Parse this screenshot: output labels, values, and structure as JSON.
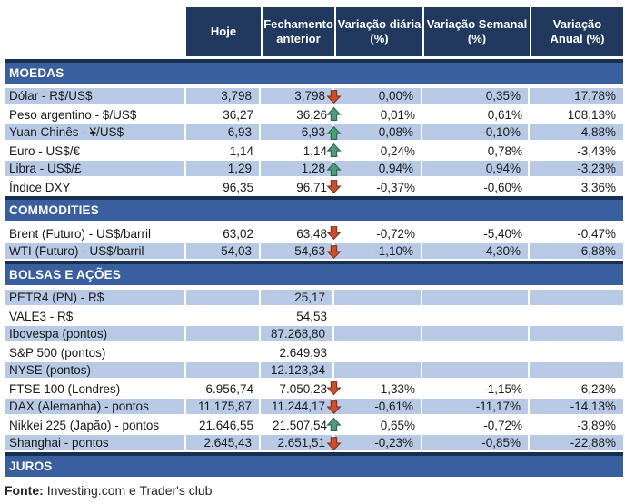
{
  "chart_data": {
    "type": "table",
    "columns": [
      "",
      "Hoje",
      "Fechamento\nanterior",
      "Variação diária\n(%)",
      "Variação Semanal\n(%)",
      "Variação\nAnual (%)"
    ],
    "sections": [
      {
        "title": "MOEDAS",
        "first_row_shaded": true,
        "rows": [
          {
            "label": "Dólar - R$/US$",
            "hoje": "3,798",
            "fechamento": "3,798",
            "arrow": "down",
            "daily": "0,00%",
            "weekly": "0,35%",
            "annual": "17,78%"
          },
          {
            "label": "Peso argentino - $/US$",
            "hoje": "36,27",
            "fechamento": "36,26",
            "arrow": "up",
            "daily": "0,01%",
            "weekly": "0,61%",
            "annual": "108,13%"
          },
          {
            "label": "Yuan Chinês - ¥/US$",
            "hoje": "6,93",
            "fechamento": "6,93",
            "arrow": "up",
            "daily": "0,08%",
            "weekly": "-0,10%",
            "annual": "4,88%"
          },
          {
            "label": "Euro - US$/€",
            "hoje": "1,14",
            "fechamento": "1,14",
            "arrow": "up",
            "daily": "0,24%",
            "weekly": "0,78%",
            "annual": "-3,43%"
          },
          {
            "label": "Libra - US$/£",
            "hoje": "1,29",
            "fechamento": "1,28",
            "arrow": "up",
            "daily": "0,94%",
            "weekly": "0,94%",
            "annual": "-3,23%"
          },
          {
            "label": "Índice DXY",
            "hoje": "96,35",
            "fechamento": "96,71",
            "arrow": "down",
            "daily": "-0,37%",
            "weekly": "-0,60%",
            "annual": "3,36%"
          }
        ]
      },
      {
        "title": "COMMODITIES",
        "first_row_shaded": false,
        "rows": [
          {
            "label": "Brent (Futuro) - US$/barril",
            "hoje": "63,02",
            "fechamento": "63,48",
            "arrow": "down",
            "daily": "-0,72%",
            "weekly": "-5,40%",
            "annual": "-0,47%"
          },
          {
            "label": "WTI (Futuro) - US$/barril",
            "hoje": "54,03",
            "fechamento": "54,63",
            "arrow": "down",
            "daily": "-1,10%",
            "weekly": "-4,30%",
            "annual": "-6,88%"
          }
        ]
      },
      {
        "title": "BOLSAS E AÇÕES",
        "first_row_shaded": true,
        "rows": [
          {
            "label": "PETR4 (PN) - R$",
            "hoje": "",
            "fechamento": "25,17",
            "arrow": "",
            "daily": "",
            "weekly": "",
            "annual": ""
          },
          {
            "label": "VALE3 - R$",
            "hoje": "",
            "fechamento": "54,53",
            "arrow": "",
            "daily": "",
            "weekly": "",
            "annual": ""
          },
          {
            "label": "Ibovespa (pontos)",
            "hoje": "",
            "fechamento": "87.268,80",
            "arrow": "",
            "daily": "",
            "weekly": "",
            "annual": ""
          },
          {
            "label": "S&P 500 (pontos)",
            "hoje": "",
            "fechamento": "2.649,93",
            "arrow": "",
            "daily": "",
            "weekly": "",
            "annual": ""
          },
          {
            "label": "NYSE (pontos)",
            "hoje": "",
            "fechamento": "12.123,34",
            "arrow": "",
            "daily": "",
            "weekly": "",
            "annual": ""
          },
          {
            "label": "FTSE 100 (Londres)",
            "hoje": "6.956,74",
            "fechamento": "7.050,23",
            "arrow": "down",
            "daily": "-1,33%",
            "weekly": "-1,15%",
            "annual": "-6,23%"
          },
          {
            "label": "DAX (Alemanha) - pontos",
            "hoje": "11.175,87",
            "fechamento": "11.244,17",
            "arrow": "down",
            "daily": "-0,61%",
            "weekly": "-11,17%",
            "annual": "-14,13%"
          },
          {
            "label": "Nikkei 225 (Japão) - pontos",
            "hoje": "21.646,55",
            "fechamento": "21.507,54",
            "arrow": "up",
            "daily": "0,65%",
            "weekly": "-0,72%",
            "annual": "-3,89%"
          },
          {
            "label": "Shanghai - pontos",
            "hoje": "2.645,43",
            "fechamento": "2.651,51",
            "arrow": "down",
            "daily": "-0,23%",
            "weekly": "-0,85%",
            "annual": "-22,88%"
          }
        ]
      },
      {
        "title": "JUROS",
        "first_row_shaded": true,
        "rows": []
      }
    ]
  },
  "footer": {
    "source_label": "Fonte:",
    "source_text": "Investing.com e Trader's club"
  },
  "icons": {
    "positive_change": "arrow-up-icon",
    "negative_change": "arrow-down-icon"
  },
  "colors": {
    "header_bg": "#21395e",
    "section_bar_bg": "#3a5f9e",
    "section_border": "#17304f",
    "row_shaded_bg": "#b7c9e4",
    "arrow_up": "#4f9c7b",
    "arrow_up_border": "#2a6349",
    "arrow_down": "#c9502c",
    "arrow_down_border": "#842c17",
    "text": "#1a1a1a"
  }
}
